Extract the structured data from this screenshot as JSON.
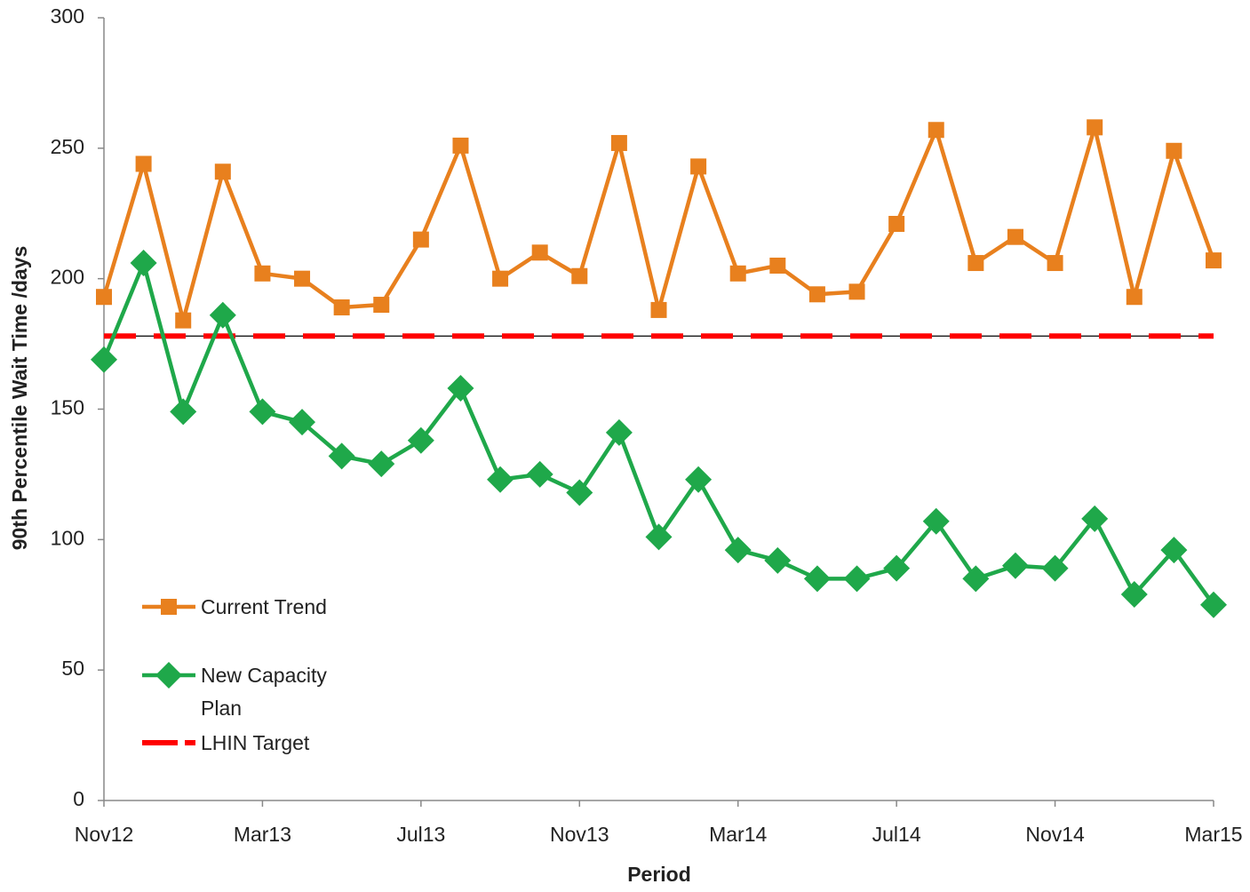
{
  "chart_data": {
    "type": "line",
    "x_label": "Period",
    "y_label": "90th Percentile Wait Time /days",
    "categories": [
      "Nov12",
      null,
      null,
      null,
      "Mar13",
      null,
      null,
      null,
      "Jul13",
      null,
      null,
      null,
      "Nov13",
      null,
      null,
      null,
      "Mar14",
      null,
      null,
      null,
      "Jul14",
      null,
      null,
      null,
      "Nov14",
      null,
      null,
      null,
      "Mar15"
    ],
    "series": [
      {
        "name": "Current Trend",
        "color": "#e8801e",
        "marker": "square",
        "values": [
          193,
          244,
          184,
          241,
          202,
          200,
          189,
          190,
          215,
          251,
          200,
          210,
          201,
          252,
          188,
          243,
          202,
          205,
          194,
          195,
          221,
          257,
          206,
          216,
          206,
          258,
          193,
          249,
          207
        ]
      },
      {
        "name": "New Capacity Plan",
        "color": "#1fa84a",
        "marker": "diamond",
        "values": [
          169,
          206,
          149,
          186,
          149,
          145,
          132,
          129,
          138,
          158,
          123,
          125,
          118,
          141,
          101,
          123,
          96,
          92,
          85,
          85,
          89,
          107,
          85,
          90,
          89,
          108,
          79,
          96,
          75
        ]
      },
      {
        "name": "LHIN Target",
        "color": "#ff0000",
        "marker": "none",
        "dashed": true,
        "values": [
          178,
          178,
          178,
          178,
          178,
          178,
          178,
          178,
          178,
          178,
          178,
          178,
          178,
          178,
          178,
          178,
          178,
          178,
          178,
          178,
          178,
          178,
          178,
          178,
          178,
          178,
          178,
          178,
          178
        ]
      }
    ],
    "ylim": [
      0,
      300
    ],
    "yticks": [
      0,
      50,
      100,
      150,
      200,
      250,
      300
    ],
    "grid": false,
    "legend": "lower left"
  }
}
